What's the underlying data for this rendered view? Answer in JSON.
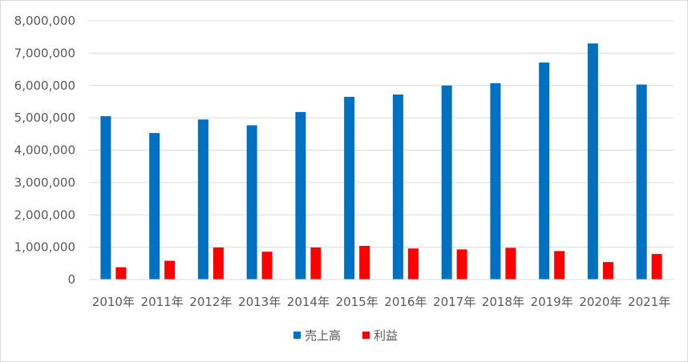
{
  "chart_data": {
    "type": "bar",
    "categories": [
      "2010年",
      "2011年",
      "2012年",
      "2013年",
      "2014年",
      "2015年",
      "2016年",
      "2017年",
      "2018年",
      "2019年",
      "2020年",
      "2021年"
    ],
    "series": [
      {
        "name": "売上高",
        "color": "#0070C0",
        "values": [
          5050000,
          4530000,
          4950000,
          4770000,
          5180000,
          5650000,
          5720000,
          6000000,
          6070000,
          6710000,
          7300000,
          6030000
        ]
      },
      {
        "name": "利益",
        "color": "#FF0000",
        "values": [
          380000,
          580000,
          990000,
          860000,
          990000,
          1040000,
          960000,
          930000,
          980000,
          880000,
          540000,
          790000
        ]
      }
    ],
    "ylim": [
      0,
      8000000
    ],
    "yticks": [
      "0",
      "1,000,000",
      "2,000,000",
      "3,000,000",
      "4,000,000",
      "5,000,000",
      "6,000,000",
      "7,000,000",
      "8,000,000"
    ],
    "grid": true,
    "legend_position": "bottom"
  }
}
